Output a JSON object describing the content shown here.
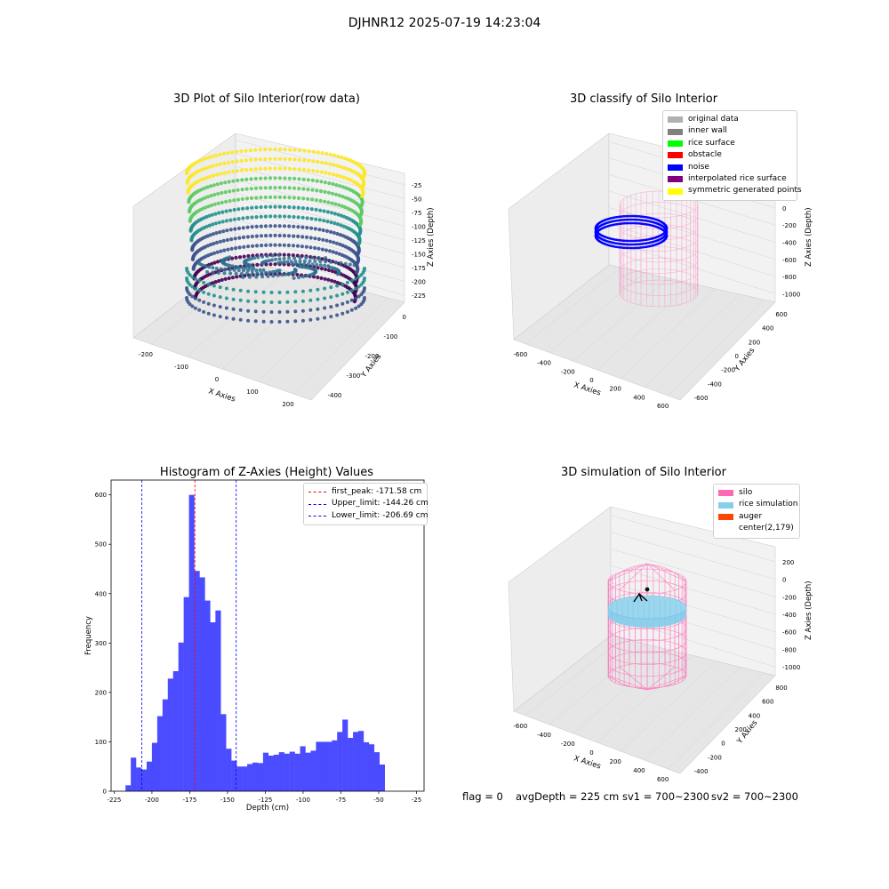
{
  "suptitle": "DJHNR12 2025-07-19 14:23:04",
  "panels": {
    "raw": {
      "title": "3D Plot of Silo Interior(row data)",
      "xlabel": "X Axies",
      "ylabel": "Y Axies",
      "zlabel": "Z Axies (Depth)",
      "xticks": [
        "-200",
        "-100",
        "0",
        "100",
        "200"
      ],
      "yticks": [
        "-400",
        "-300",
        "-200",
        "-100",
        "0"
      ],
      "zticks": [
        "-25",
        "-50",
        "-75",
        "-100",
        "-125",
        "-150",
        "-175",
        "-200",
        "-225"
      ]
    },
    "classify": {
      "title": "3D classify of Silo Interior",
      "xlabel": "X Axies",
      "ylabel": "Y Axies",
      "zlabel": "Z Axies (Depth)",
      "xticks": [
        "-600",
        "-400",
        "-200",
        "0",
        "200",
        "400",
        "600"
      ],
      "yticks": [
        "-600",
        "-400",
        "-200",
        "0",
        "200",
        "400",
        "600"
      ],
      "zticks": [
        "200",
        "0",
        "-200",
        "-400",
        "-600",
        "-800",
        "-1000"
      ],
      "legend": [
        {
          "label": "original data",
          "color": "#b0b0b0"
        },
        {
          "label": "inner wall",
          "color": "#808080"
        },
        {
          "label": "rice surface",
          "color": "#00ff00"
        },
        {
          "label": "obstacle",
          "color": "#ff0000"
        },
        {
          "label": "noise",
          "color": "#0000ff"
        },
        {
          "label": "interpolated rice surface",
          "color": "#800080"
        },
        {
          "label": "symmetric generated points",
          "color": "#ffff00"
        }
      ]
    },
    "simulation": {
      "title": "3D simulation of Silo Interior",
      "xlabel": "X Axies",
      "ylabel": "Y Axies",
      "zlabel": "Z Axies (Depth)",
      "xticks": [
        "-600",
        "-400",
        "-200",
        "0",
        "200",
        "400",
        "600"
      ],
      "yticks": [
        "-400",
        "-200",
        "0",
        "200",
        "400",
        "600",
        "800"
      ],
      "zticks": [
        "200",
        "0",
        "-200",
        "-400",
        "-600",
        "-800",
        "-1000"
      ],
      "legend": [
        {
          "label": "silo",
          "color": "#ff69b4"
        },
        {
          "label": "rice simulation",
          "color": "#87ceeb"
        },
        {
          "label": "auger",
          "color": "#ff4500"
        },
        {
          "label": "center(2,179)",
          "color": ""
        }
      ]
    }
  },
  "footer": {
    "flag": "flag = 0",
    "avg_depth": "avgDepth = 225 cm",
    "sv1": "sv1 = 700~2300",
    "sv2": "sv2 = 700~2300"
  },
  "colors": {
    "histogram_bar": "#4b4bff",
    "silo_pink": "#ff69b4",
    "rice_blue": "#87ceeb",
    "noise_blue": "#0000ff"
  },
  "chart_data": [
    {
      "type": "bar",
      "title": "Histogram of Z-Axies (Height) Values",
      "xlabel": "Depth (cm)",
      "ylabel": "Frequency",
      "xlim": [
        -227,
        -20
      ],
      "ylim": [
        0,
        630
      ],
      "xticks": [
        -225,
        -200,
        -175,
        -150,
        -125,
        -100,
        -75,
        -50,
        -25
      ],
      "yticks": [
        0,
        100,
        200,
        300,
        400,
        500,
        600
      ],
      "bin_start": -217.5,
      "bin_width": 3.5,
      "values": [
        12,
        68,
        48,
        44,
        60,
        98,
        152,
        186,
        228,
        243,
        301,
        393,
        600,
        446,
        433,
        386,
        342,
        366,
        156,
        86,
        62,
        50,
        50,
        55,
        58,
        57,
        78,
        72,
        74,
        79,
        76,
        80,
        76,
        91,
        78,
        82,
        100,
        100,
        100,
        103,
        120,
        145,
        108,
        120,
        122,
        99,
        95,
        79,
        54
      ],
      "vlines": [
        {
          "label": "first_peak: -171.58 cm",
          "x": -171.58,
          "color": "#ff0000"
        },
        {
          "label": "Upper_limit: -144.26 cm",
          "x": -144.26,
          "color": "#0000ff"
        },
        {
          "label": "Lower_limit: -206.69 cm",
          "x": -206.69,
          "color": "#0000ff"
        }
      ],
      "legend": "top-right"
    }
  ]
}
